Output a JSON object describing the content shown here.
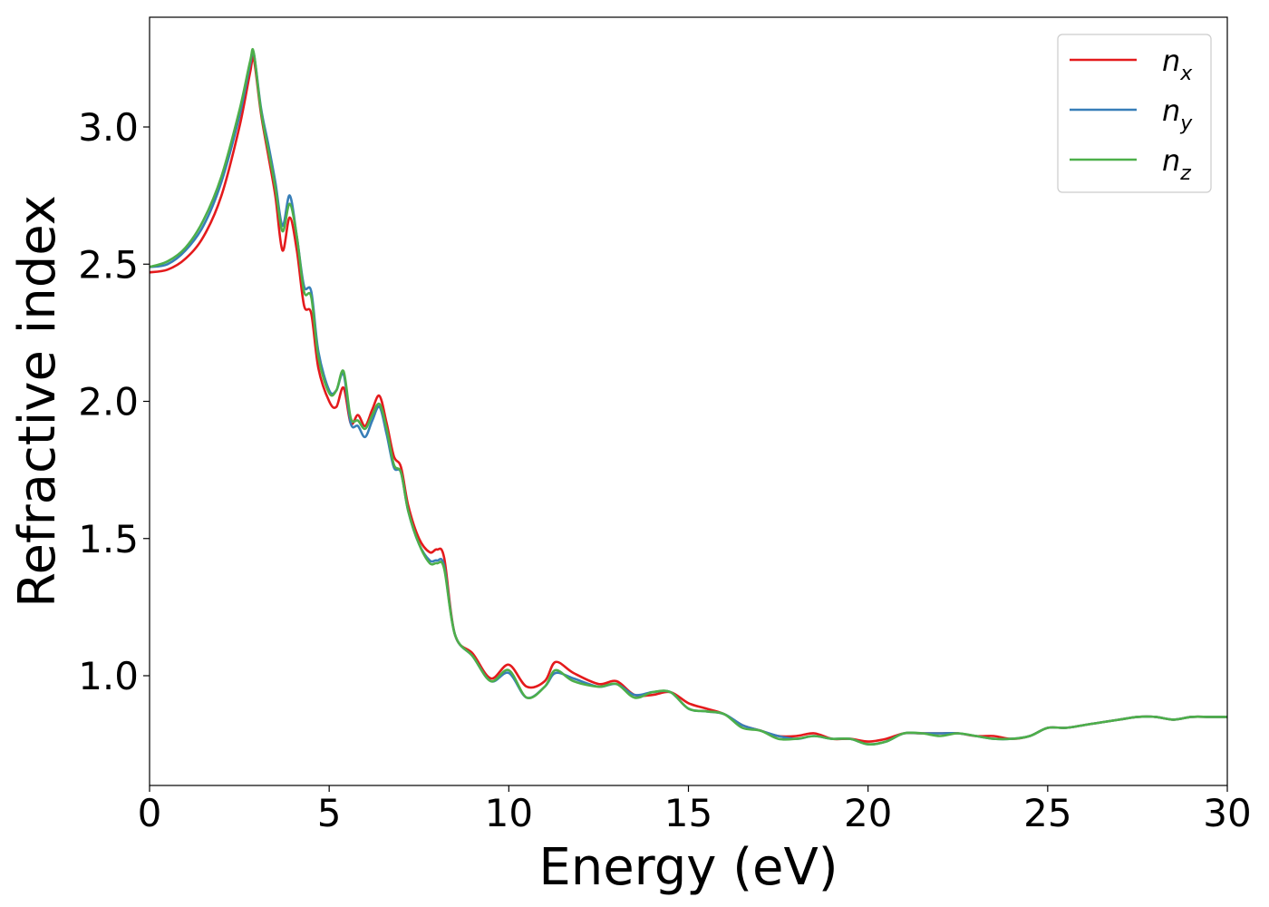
{
  "chart_data": {
    "type": "line",
    "xlabel": "Energy (eV)",
    "ylabel": "Refractive index",
    "xlim": [
      0,
      30
    ],
    "ylim": [
      0.6,
      3.4
    ],
    "xticks": [
      0,
      5,
      10,
      15,
      20,
      25,
      30
    ],
    "yticks": [
      1.0,
      1.5,
      2.0,
      2.5,
      3.0
    ],
    "xtick_labels": [
      "0",
      "5",
      "10",
      "15",
      "20",
      "25",
      "30"
    ],
    "ytick_labels": [
      "1.0",
      "1.5",
      "2.0",
      "2.5",
      "3.0"
    ],
    "grid": false,
    "legend_position": "top-right",
    "series": [
      {
        "name": "n_x",
        "label_main": "n",
        "label_sub": "x",
        "color": "#e41a1c",
        "x": [
          0,
          0.5,
          1.0,
          1.5,
          2.0,
          2.5,
          2.8,
          2.9,
          3.1,
          3.3,
          3.5,
          3.7,
          3.9,
          4.1,
          4.3,
          4.5,
          4.7,
          5.0,
          5.2,
          5.4,
          5.6,
          5.8,
          6.0,
          6.2,
          6.4,
          6.6,
          6.8,
          7.0,
          7.2,
          7.5,
          7.8,
          8.0,
          8.2,
          8.5,
          9.0,
          9.5,
          10.0,
          10.5,
          11.0,
          11.3,
          11.8,
          12.5,
          13.0,
          13.5,
          14.0,
          14.5,
          15.0,
          15.5,
          16.0,
          16.5,
          17.0,
          17.5,
          18.0,
          18.5,
          19.0,
          19.5,
          20.0,
          20.5,
          21.0,
          21.5,
          22.0,
          22.5,
          23.0,
          23.5,
          24.0,
          24.5,
          25.0,
          25.5,
          26.0,
          26.5,
          27.0,
          27.5,
          28.0,
          28.5,
          29.0,
          29.5,
          30.0
        ],
        "y": [
          2.47,
          2.48,
          2.52,
          2.6,
          2.75,
          3.0,
          3.2,
          3.25,
          3.05,
          2.9,
          2.75,
          2.55,
          2.67,
          2.55,
          2.35,
          2.32,
          2.12,
          2.0,
          1.98,
          2.05,
          1.92,
          1.95,
          1.91,
          1.97,
          2.02,
          1.92,
          1.8,
          1.76,
          1.62,
          1.5,
          1.45,
          1.46,
          1.43,
          1.15,
          1.08,
          0.99,
          1.04,
          0.96,
          0.98,
          1.05,
          1.01,
          0.97,
          0.98,
          0.93,
          0.93,
          0.94,
          0.9,
          0.88,
          0.86,
          0.82,
          0.8,
          0.78,
          0.78,
          0.79,
          0.77,
          0.77,
          0.76,
          0.77,
          0.79,
          0.79,
          0.79,
          0.79,
          0.78,
          0.78,
          0.77,
          0.78,
          0.81,
          0.81,
          0.82,
          0.83,
          0.84,
          0.85,
          0.85,
          0.84,
          0.85,
          0.85,
          0.85
        ]
      },
      {
        "name": "n_y",
        "label_main": "n",
        "label_sub": "y",
        "color": "#377eb8",
        "x": [
          0,
          0.5,
          1.0,
          1.5,
          2.0,
          2.5,
          2.8,
          2.9,
          3.1,
          3.3,
          3.5,
          3.7,
          3.9,
          4.1,
          4.3,
          4.5,
          4.7,
          5.0,
          5.2,
          5.4,
          5.6,
          5.8,
          6.0,
          6.2,
          6.4,
          6.6,
          6.8,
          7.0,
          7.2,
          7.5,
          7.8,
          8.0,
          8.2,
          8.5,
          9.0,
          9.5,
          10.0,
          10.5,
          11.0,
          11.3,
          11.8,
          12.5,
          13.0,
          13.5,
          14.0,
          14.5,
          15.0,
          15.5,
          16.0,
          16.5,
          17.0,
          17.5,
          18.0,
          18.5,
          19.0,
          19.5,
          20.0,
          20.5,
          21.0,
          21.5,
          22.0,
          22.5,
          23.0,
          23.5,
          24.0,
          24.5,
          25.0,
          25.5,
          26.0,
          26.5,
          27.0,
          27.5,
          28.0,
          28.5,
          29.0,
          29.5,
          30.0
        ],
        "y": [
          2.49,
          2.5,
          2.55,
          2.64,
          2.8,
          3.04,
          3.23,
          3.27,
          3.07,
          2.94,
          2.8,
          2.64,
          2.75,
          2.6,
          2.42,
          2.4,
          2.18,
          2.04,
          2.04,
          2.1,
          1.92,
          1.91,
          1.87,
          1.93,
          1.98,
          1.88,
          1.76,
          1.74,
          1.6,
          1.48,
          1.42,
          1.42,
          1.4,
          1.15,
          1.07,
          0.98,
          1.01,
          0.92,
          0.96,
          1.01,
          0.99,
          0.96,
          0.97,
          0.93,
          0.94,
          0.94,
          0.88,
          0.87,
          0.86,
          0.82,
          0.8,
          0.78,
          0.77,
          0.78,
          0.77,
          0.77,
          0.75,
          0.76,
          0.79,
          0.79,
          0.79,
          0.79,
          0.78,
          0.77,
          0.77,
          0.78,
          0.81,
          0.81,
          0.82,
          0.83,
          0.84,
          0.85,
          0.85,
          0.84,
          0.85,
          0.85,
          0.85
        ]
      },
      {
        "name": "n_z",
        "label_main": "n",
        "label_sub": "z",
        "color": "#4daf4a",
        "x": [
          0,
          0.5,
          1.0,
          1.5,
          2.0,
          2.5,
          2.8,
          2.9,
          3.1,
          3.3,
          3.5,
          3.7,
          3.9,
          4.1,
          4.3,
          4.5,
          4.7,
          5.0,
          5.2,
          5.4,
          5.6,
          5.8,
          6.0,
          6.2,
          6.4,
          6.6,
          6.8,
          7.0,
          7.2,
          7.5,
          7.8,
          8.0,
          8.2,
          8.5,
          9.0,
          9.5,
          10.0,
          10.5,
          11.0,
          11.3,
          11.8,
          12.5,
          13.0,
          13.5,
          14.0,
          14.5,
          15.0,
          15.5,
          16.0,
          16.5,
          17.0,
          17.5,
          18.0,
          18.5,
          19.0,
          19.5,
          20.0,
          20.5,
          21.0,
          21.5,
          22.0,
          22.5,
          23.0,
          23.5,
          24.0,
          24.5,
          25.0,
          25.5,
          26.0,
          26.5,
          27.0,
          27.5,
          28.0,
          28.5,
          29.0,
          29.5,
          30.0
        ],
        "y": [
          2.49,
          2.51,
          2.56,
          2.66,
          2.82,
          3.06,
          3.24,
          3.27,
          3.06,
          2.92,
          2.78,
          2.62,
          2.72,
          2.6,
          2.4,
          2.38,
          2.16,
          2.03,
          2.04,
          2.11,
          1.94,
          1.93,
          1.9,
          1.95,
          1.99,
          1.9,
          1.77,
          1.74,
          1.6,
          1.48,
          1.41,
          1.41,
          1.39,
          1.15,
          1.07,
          0.98,
          1.02,
          0.92,
          0.96,
          1.02,
          0.98,
          0.96,
          0.97,
          0.92,
          0.94,
          0.94,
          0.88,
          0.87,
          0.86,
          0.81,
          0.8,
          0.77,
          0.77,
          0.78,
          0.77,
          0.77,
          0.75,
          0.76,
          0.79,
          0.79,
          0.78,
          0.79,
          0.78,
          0.77,
          0.77,
          0.78,
          0.81,
          0.81,
          0.82,
          0.83,
          0.84,
          0.85,
          0.85,
          0.84,
          0.85,
          0.85,
          0.85
        ]
      }
    ]
  }
}
